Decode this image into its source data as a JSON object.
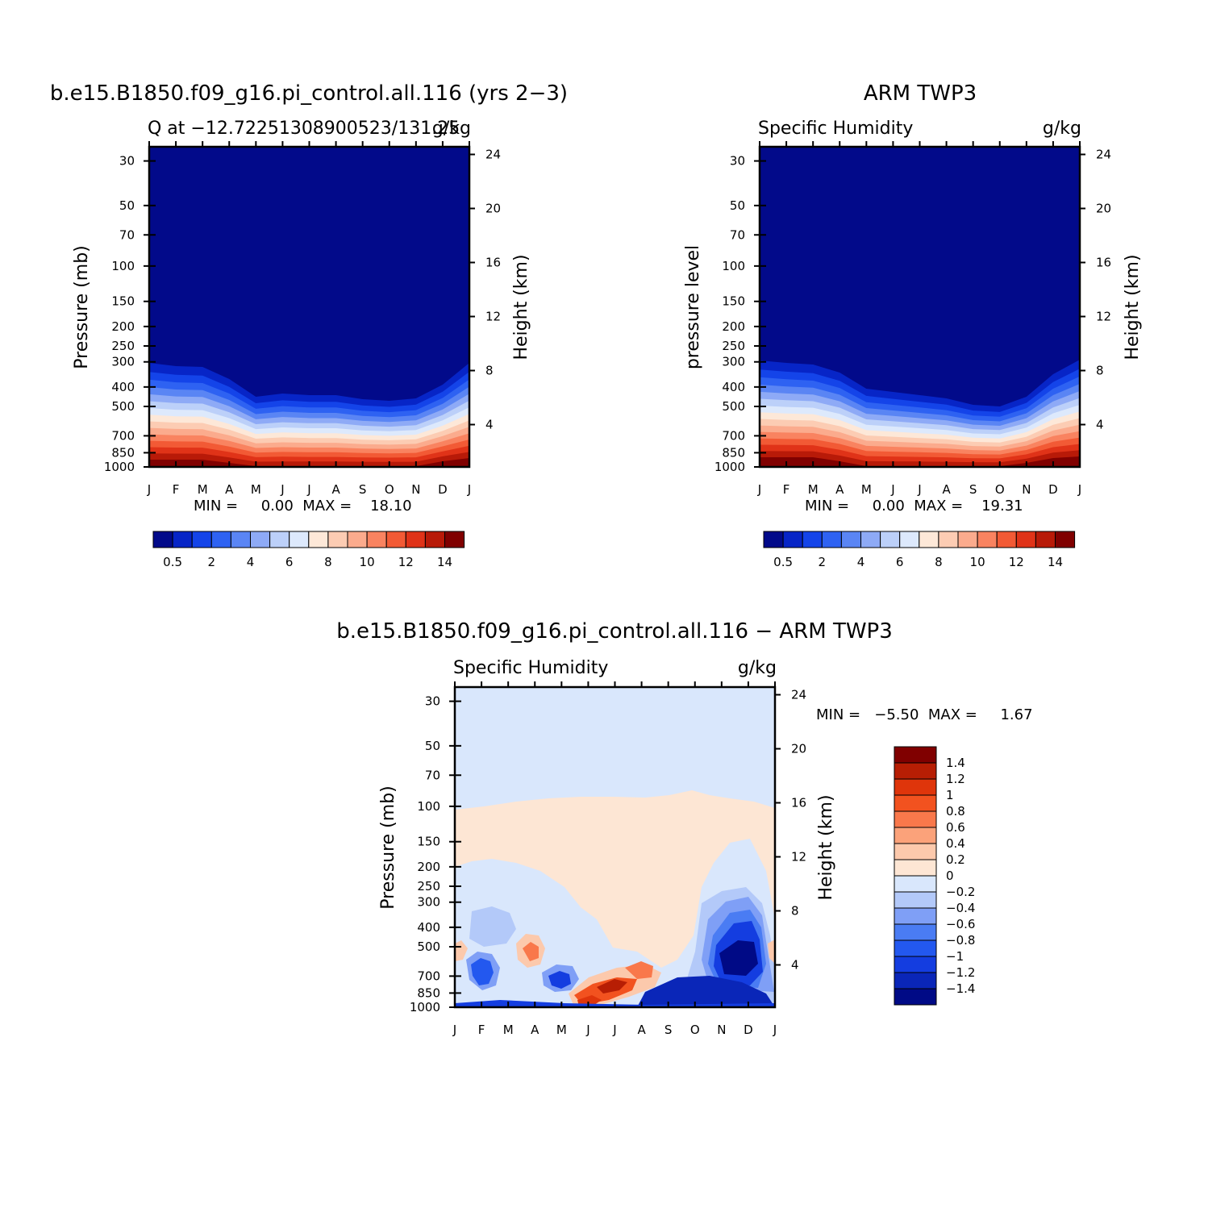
{
  "colors": {
    "q_scale": [
      "#020a8a",
      "#0725c7",
      "#1444e9",
      "#2e62f2",
      "#5a85f4",
      "#8eaaf6",
      "#bcd0f9",
      "#dde9fc",
      "#fde8d8",
      "#fcccb3",
      "#fbab8d",
      "#f98360",
      "#f25a35",
      "#e03318",
      "#b81a08",
      "#800000"
    ],
    "diff_scale": [
      "#000a86",
      "#0a26b8",
      "#143de0",
      "#2358ef",
      "#4a7cf3",
      "#7f9ff6",
      "#b3c9f9",
      "#d9e7fc",
      "#fde6d4",
      "#fcc9ac",
      "#fba27a",
      "#f9784b",
      "#f2521f",
      "#df350b",
      "#b71e04",
      "#800000"
    ]
  },
  "panels": [
    {
      "id": "model",
      "title": "b.e15.B1850.f09_g16.pi_control.all.116 (yrs 2−3)",
      "left_label": "Q at −12.72251308900523/131.25",
      "right_label": "g/kg",
      "ylabel": "Pressure (mb)",
      "ylabel2": "Height (km)",
      "minmax_text": "MIN =     0.00  MAX =    18.10"
    },
    {
      "id": "obs",
      "title": "ARM TWP3",
      "left_label": "Specific Humidity",
      "right_label": "g/kg",
      "ylabel": "pressure level",
      "ylabel2": "Height (km)",
      "minmax_text": "MIN =     0.00  MAX =    19.31"
    },
    {
      "id": "diff",
      "title": "b.e15.B1850.f09_g16.pi_control.all.116 − ARM TWP3",
      "left_label": "Specific Humidity",
      "right_label": "g/kg",
      "ylabel": "Pressure (mb)",
      "ylabel2": "Height (km)",
      "minmax_text": "MIN =   −5.50  MAX =     1.67"
    }
  ],
  "axes": {
    "month_ticks": [
      "J",
      "F",
      "M",
      "A",
      "M",
      "J",
      "J",
      "A",
      "S",
      "O",
      "N",
      "D",
      "J"
    ],
    "pressure_ticks": [
      "30",
      "50",
      "70",
      "100",
      "150",
      "200",
      "250",
      "300",
      "400",
      "500",
      "700",
      "850",
      "1000"
    ],
    "height_ticks": [
      "4",
      "8",
      "12",
      "16",
      "20",
      "24"
    ]
  },
  "colorbars": {
    "q_labels": [
      "0.5",
      "2",
      "4",
      "6",
      "8",
      "10",
      "12",
      "14"
    ],
    "diff_labels": [
      "1.4",
      "1.2",
      "1",
      "0.8",
      "0.6",
      "0.4",
      "0.2",
      "0",
      "−0.2",
      "−0.4",
      "−0.6",
      "−0.8",
      "−1",
      "−1.2",
      "−1.4"
    ]
  },
  "chart_data": [
    {
      "type": "heatmap",
      "title": "b.e15.B1850.f09_g16.pi_control.all.116 (yrs 2−3)",
      "subtitle": "Q at −12.72251308900523/131.25",
      "units": "g/kg",
      "xlabel": "",
      "ylabel": "Pressure (mb)",
      "ylabel_right": "Height (km)",
      "x": [
        "J",
        "F",
        "M",
        "A",
        "M",
        "J",
        "J",
        "A",
        "S",
        "O",
        "N",
        "D",
        "J"
      ],
      "y_pressure": [
        1000,
        850,
        700,
        500,
        400,
        300,
        250,
        200,
        150,
        100,
        70,
        50,
        30
      ],
      "min": 0.0,
      "max": 18.1,
      "colorbar_levels": [
        0.5,
        2,
        4,
        6,
        8,
        10,
        12,
        14
      ]
    },
    {
      "type": "heatmap",
      "title": "ARM TWP3",
      "subtitle": "Specific Humidity",
      "units": "g/kg",
      "xlabel": "",
      "ylabel": "pressure level",
      "ylabel_right": "Height (km)",
      "x": [
        "J",
        "F",
        "M",
        "A",
        "M",
        "J",
        "J",
        "A",
        "S",
        "O",
        "N",
        "D",
        "J"
      ],
      "y_pressure": [
        1000,
        850,
        700,
        500,
        400,
        300,
        250,
        200,
        150,
        100,
        70,
        50,
        30
      ],
      "min": 0.0,
      "max": 19.31,
      "colorbar_levels": [
        0.5,
        2,
        4,
        6,
        8,
        10,
        12,
        14
      ]
    },
    {
      "type": "heatmap",
      "title": "b.e15.B1850.f09_g16.pi_control.all.116 − ARM TWP3",
      "subtitle": "Specific Humidity",
      "units": "g/kg",
      "xlabel": "",
      "ylabel": "Pressure (mb)",
      "ylabel_right": "Height (km)",
      "x": [
        "J",
        "F",
        "M",
        "A",
        "M",
        "J",
        "J",
        "A",
        "S",
        "O",
        "N",
        "D",
        "J"
      ],
      "y_pressure": [
        1000,
        850,
        700,
        500,
        400,
        300,
        250,
        200,
        150,
        100,
        70,
        50,
        30
      ],
      "min": -5.5,
      "max": 1.67,
      "colorbar_levels": [
        -1.4,
        -1.2,
        -1,
        -0.8,
        -0.6,
        -0.4,
        -0.2,
        0,
        0.2,
        0.4,
        0.6,
        0.8,
        1,
        1.2,
        1.4
      ]
    }
  ]
}
